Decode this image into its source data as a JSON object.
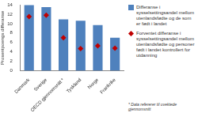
{
  "chart_data": {
    "type": "bar",
    "categories": [
      "Danmark",
      "Sverige",
      "OECD gjennomsnitt *",
      "Tyskland",
      "Norge",
      "Frankrike"
    ],
    "series": [
      {
        "name": "Differanse i sysselsettingsandel mellom utenlandsfødte og de som er født i landet",
        "type": "bar",
        "color": "#4f81bd",
        "values": [
          13.9,
          13.5,
          10.9,
          10.6,
          9.7,
          7.0
        ]
      },
      {
        "name": "Forventet differanse i sysselsettingsandel mellom utenlandsfødte og personer født i landet kontrollert for utdanning",
        "type": "scatter",
        "color": "#c00000",
        "marker": "diamond",
        "line_style": "none",
        "values": [
          11.5,
          11.8,
          7.0,
          4.7,
          5.3,
          4.8
        ]
      }
    ],
    "y_label": "Prosentpoengs differanse",
    "ylim": [
      0,
      14
    ],
    "yticks": [
      0,
      2,
      4,
      6,
      8,
      10,
      12,
      14
    ],
    "grid": false,
    "legend": "right",
    "annotations": [
      "* Data refererer til uvektede gjennomsnitt"
    ]
  }
}
